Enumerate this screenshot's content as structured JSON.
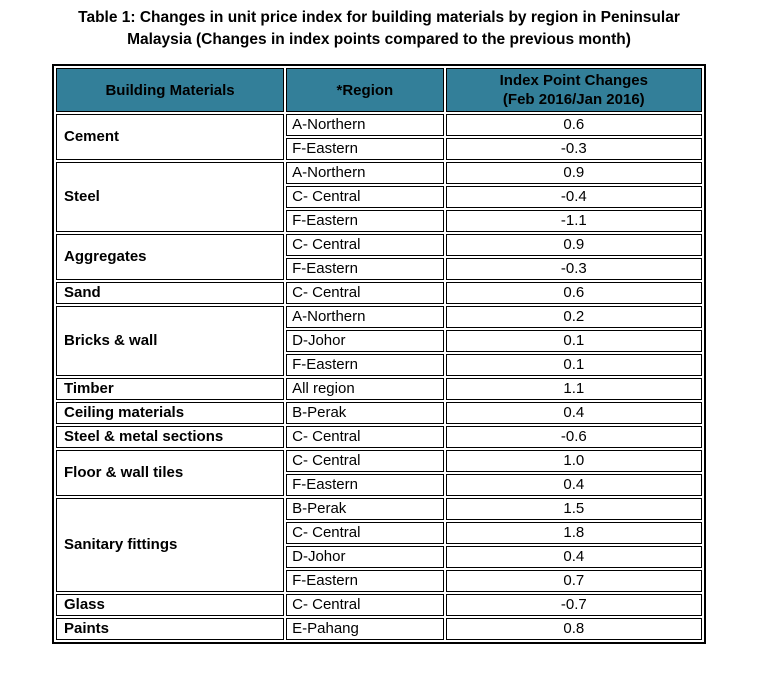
{
  "title": {
    "line1": "Table 1: Changes in unit price index for building materials by region in Peninsular",
    "line2": "Malaysia (Changes in index points compared to the previous month)"
  },
  "colors": {
    "header_bg": "#337F99",
    "border": "#000000",
    "text": "#000000",
    "background": "#FFFFFF"
  },
  "table": {
    "headers": {
      "building_materials": "Building Materials",
      "region": "*Region",
      "index_changes_line1": "Index Point Changes",
      "index_changes_line2": "(Feb 2016/Jan 2016)"
    },
    "groups": [
      {
        "material": "Cement",
        "rows": [
          {
            "region": "A-Northern",
            "change": "0.6"
          },
          {
            "region": "F-Eastern",
            "change": "-0.3"
          }
        ]
      },
      {
        "material": "Steel",
        "rows": [
          {
            "region": "A-Northern",
            "change": "0.9"
          },
          {
            "region": "C- Central",
            "change": "-0.4"
          },
          {
            "region": "F-Eastern",
            "change": "-1.1"
          }
        ]
      },
      {
        "material": "Aggregates",
        "rows": [
          {
            "region": "C- Central",
            "change": "0.9"
          },
          {
            "region": "F-Eastern",
            "change": "-0.3"
          }
        ]
      },
      {
        "material": "Sand",
        "rows": [
          {
            "region": "C- Central",
            "change": "0.6"
          }
        ]
      },
      {
        "material": "Bricks & wall",
        "rows": [
          {
            "region": "A-Northern",
            "change": "0.2"
          },
          {
            "region": "D-Johor",
            "change": "0.1"
          },
          {
            "region": "F-Eastern",
            "change": "0.1"
          }
        ]
      },
      {
        "material": "Timber",
        "rows": [
          {
            "region": "All region",
            "change": "1.1"
          }
        ]
      },
      {
        "material": "Ceiling materials",
        "rows": [
          {
            "region": "B-Perak",
            "change": "0.4"
          }
        ]
      },
      {
        "material": "Steel & metal sections",
        "rows": [
          {
            "region": "C- Central",
            "change": "-0.6"
          }
        ]
      },
      {
        "material": "Floor & wall tiles",
        "rows": [
          {
            "region": "C- Central",
            "change": "1.0"
          },
          {
            "region": "F-Eastern",
            "change": "0.4"
          }
        ]
      },
      {
        "material": "Sanitary fittings",
        "rows": [
          {
            "region": "B-Perak",
            "change": "1.5"
          },
          {
            "region": "C- Central",
            "change": "1.8"
          },
          {
            "region": "D-Johor",
            "change": "0.4"
          },
          {
            "region": "F-Eastern",
            "change": "0.7"
          }
        ]
      },
      {
        "material": "Glass",
        "rows": [
          {
            "region": "C- Central",
            "change": "-0.7"
          }
        ]
      },
      {
        "material": "Paints",
        "rows": [
          {
            "region": "E-Pahang",
            "change": "0.8"
          }
        ]
      }
    ]
  }
}
